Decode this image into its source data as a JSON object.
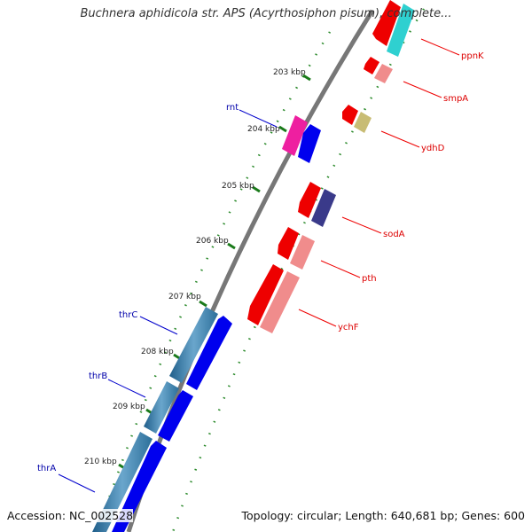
{
  "title": "Buchnera aphidicola str. APS (Acyrthosiphon pisum), complete...",
  "footer": {
    "accession": "Accession: NC_002528",
    "summary": "Topology: circular; Length: 640,681 bp; Genes: 600"
  },
  "scale_labels": [
    "203 kbp",
    "204 kbp",
    "205 kbp",
    "206 kbp",
    "207 kbp",
    "208 kbp",
    "209 kbp",
    "210 kbp"
  ],
  "genes": [
    {
      "name": "ppnK",
      "color": "#dd0000",
      "strand": "reverse"
    },
    {
      "name": "smpA",
      "color": "#dd0000",
      "strand": "reverse"
    },
    {
      "name": "ydhD",
      "color": "#dd0000",
      "strand": "reverse"
    },
    {
      "name": "sodA",
      "color": "#dd0000",
      "strand": "reverse"
    },
    {
      "name": "pth",
      "color": "#dd0000",
      "strand": "reverse"
    },
    {
      "name": "ychF",
      "color": "#dd0000",
      "strand": "reverse"
    },
    {
      "name": "rnt",
      "color": "#0000cc",
      "strand": "forward"
    },
    {
      "name": "thrC",
      "color": "#0000cc",
      "strand": "forward"
    },
    {
      "name": "thrB",
      "color": "#0000cc",
      "strand": "forward"
    },
    {
      "name": "thrA",
      "color": "#0000cc",
      "strand": "forward"
    }
  ],
  "colors": {
    "reverse_label": "#dd0000",
    "forward_label": "#0000aa",
    "backbone": "#777777",
    "gc_ticks": "#1a7a1a"
  }
}
